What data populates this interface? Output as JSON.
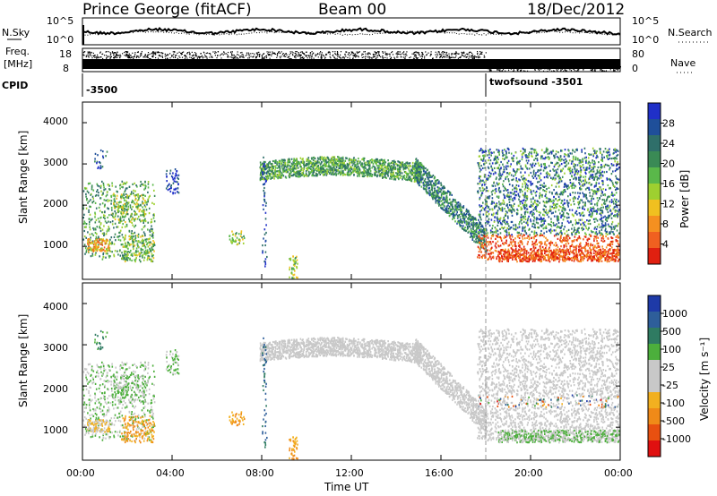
{
  "header": {
    "station": "Prince George (fitACF)",
    "beam": "Beam 00",
    "date": "18/Dec/2012"
  },
  "top_panel": {
    "left_label": "N.Sky",
    "left_ticks": [
      "10^5",
      "10^0"
    ],
    "right_label": "N.Search",
    "right_ticks": [
      "10^5",
      "10^0"
    ]
  },
  "freq_panel": {
    "left_label_1": "Freq.",
    "left_label_2": "[MHz]",
    "left_ticks": [
      "18",
      "8"
    ],
    "right_label": "Nave",
    "right_ticks": [
      "80",
      "0"
    ]
  },
  "cpid": {
    "label": "CPID",
    "first": "-3500",
    "second": "twofsound -3501"
  },
  "power_panel": {
    "ylabel": "Slant Range [km]",
    "yticks": [
      "4000",
      "3000",
      "2000",
      "1000"
    ],
    "colorbar_label": "Power [dB]",
    "colorbar_ticks": [
      "28",
      "24",
      "20",
      "16",
      "12",
      "8",
      "4"
    ],
    "colors": [
      "#2030c8",
      "#1f4f9a",
      "#2f6f6a",
      "#3a8a55",
      "#5ab84a",
      "#9ed030",
      "#f0c020",
      "#f59020",
      "#f06020",
      "#e02010"
    ]
  },
  "velocity_panel": {
    "ylabel": "Slant Range [km]",
    "yticks": [
      "4000",
      "3000",
      "2000",
      "1000"
    ],
    "colorbar_label": "Velocity [m s⁻¹]",
    "colorbar_ticks": [
      "1000",
      "500",
      "100",
      "25",
      "-25",
      "-100",
      "-500",
      "-1000"
    ],
    "colors": [
      "#1e3aa8",
      "#2e5e9a",
      "#2f7b62",
      "#4caf3c",
      "#c8c8c8",
      "#c8c8c8",
      "#f2b020",
      "#f08a18",
      "#e85010",
      "#e01010"
    ]
  },
  "x_axis": {
    "ticks": [
      "00:00",
      "04:00",
      "08:00",
      "12:00",
      "16:00",
      "20:00",
      "00:00"
    ],
    "label": "Time UT"
  },
  "chart_data": [
    {
      "type": "line",
      "title": "Prince George (fitACF) Beam 00 18/Dec/2012",
      "series": [
        {
          "name": "N.Sky"
        },
        {
          "name": "N.Search"
        }
      ]
    },
    {
      "type": "scatter",
      "series": [
        {
          "name": "Freq.",
          "y_range_mhz": [
            8,
            18
          ]
        },
        {
          "name": "Nave",
          "y_range": [
            0,
            80
          ]
        }
      ]
    },
    {
      "type": "heatmap",
      "xlabel": "Time UT",
      "ylabel": "Slant Range [km]",
      "colorbar": "Power [dB]",
      "xlim_hours": [
        0,
        24
      ],
      "ylim_km": [
        200,
        4500
      ],
      "clim_db": [
        0,
        30
      ]
    },
    {
      "type": "heatmap",
      "xlabel": "Time UT",
      "ylabel": "Slant Range [km]",
      "colorbar": "Velocity [m s⁻¹]",
      "xlim_hours": [
        0,
        24
      ],
      "ylim_km": [
        200,
        4500
      ],
      "clim_ms": [
        -1000,
        1000
      ]
    }
  ]
}
